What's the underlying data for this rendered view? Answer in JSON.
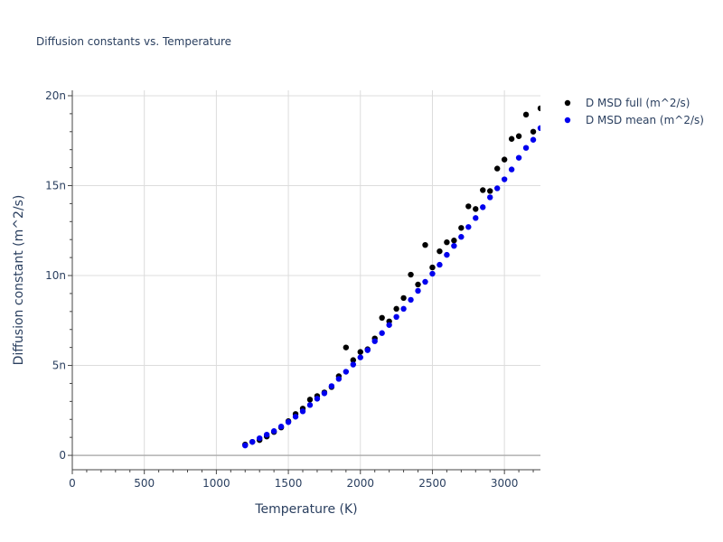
{
  "chart_data": {
    "type": "scatter",
    "title": "Diffusion constants vs. Temperature",
    "xlabel": "Temperature (K)",
    "ylabel": "Diffusion constant (m^2/s)",
    "xlim": [
      0,
      3250
    ],
    "ylim": [
      -8e-10,
      2.03e-08
    ],
    "x_ticks": [
      0,
      500,
      1000,
      1500,
      2000,
      2500,
      3000
    ],
    "x_tick_labels": [
      "0",
      "500",
      "1000",
      "1500",
      "2000",
      "2500",
      "3000"
    ],
    "y_ticks": [
      0,
      5e-09,
      1e-08,
      1.5e-08,
      2e-08
    ],
    "y_tick_labels": [
      "0",
      "5n",
      "10n",
      "15n",
      "20n"
    ],
    "grid": true,
    "legend_position": "top-right",
    "series": [
      {
        "name": "D MSD full (m^2/s)",
        "color": "#000000",
        "x": [
          1200,
          1250,
          1300,
          1350,
          1400,
          1450,
          1500,
          1550,
          1600,
          1650,
          1700,
          1750,
          1800,
          1850,
          1900,
          1950,
          2000,
          2050,
          2100,
          2150,
          2200,
          2250,
          2300,
          2350,
          2400,
          2450,
          2500,
          2550,
          2600,
          2650,
          2700,
          2750,
          2800,
          2850,
          2900,
          2950,
          3000,
          3050,
          3100,
          3150,
          3200,
          3250
        ],
        "y": [
          6e-10,
          7.5e-10,
          8.5e-10,
          1.05e-09,
          1.3e-09,
          1.55e-09,
          1.9e-09,
          2.3e-09,
          2.6e-09,
          3.1e-09,
          3.3e-09,
          3.5e-09,
          3.8e-09,
          4.4e-09,
          6e-09,
          5.3e-09,
          5.75e-09,
          5.9e-09,
          6.5e-09,
          7.65e-09,
          7.45e-09,
          8.15e-09,
          8.75e-09,
          1.005e-08,
          9.5e-09,
          1.17e-08,
          1.045e-08,
          1.135e-08,
          1.185e-08,
          1.195e-08,
          1.265e-08,
          1.385e-08,
          1.37e-08,
          1.475e-08,
          1.47e-08,
          1.595e-08,
          1.645e-08,
          1.76e-08,
          1.775e-08,
          1.895e-08,
          1.8e-08,
          1.93e-08
        ]
      },
      {
        "name": "D MSD mean (m^2/s)",
        "color": "#0000ee",
        "x": [
          1200,
          1250,
          1300,
          1350,
          1400,
          1450,
          1500,
          1550,
          1600,
          1650,
          1700,
          1750,
          1800,
          1850,
          1900,
          1950,
          2000,
          2050,
          2100,
          2150,
          2200,
          2250,
          2300,
          2350,
          2400,
          2450,
          2500,
          2550,
          2600,
          2650,
          2700,
          2750,
          2800,
          2850,
          2900,
          2950,
          3000,
          3050,
          3100,
          3150,
          3200,
          3250
        ],
        "y": [
          5.5e-10,
          7.5e-10,
          9.5e-10,
          1.15e-09,
          1.35e-09,
          1.6e-09,
          1.85e-09,
          2.15e-09,
          2.45e-09,
          2.8e-09,
          3.15e-09,
          3.45e-09,
          3.85e-09,
          4.25e-09,
          4.65e-09,
          5.05e-09,
          5.45e-09,
          5.85e-09,
          6.35e-09,
          6.8e-09,
          7.25e-09,
          7.7e-09,
          8.15e-09,
          8.65e-09,
          9.15e-09,
          9.65e-09,
          1.01e-08,
          1.06e-08,
          1.115e-08,
          1.165e-08,
          1.215e-08,
          1.27e-08,
          1.32e-08,
          1.38e-08,
          1.435e-08,
          1.485e-08,
          1.535e-08,
          1.59e-08,
          1.655e-08,
          1.71e-08,
          1.755e-08,
          1.82e-08
        ]
      }
    ]
  }
}
